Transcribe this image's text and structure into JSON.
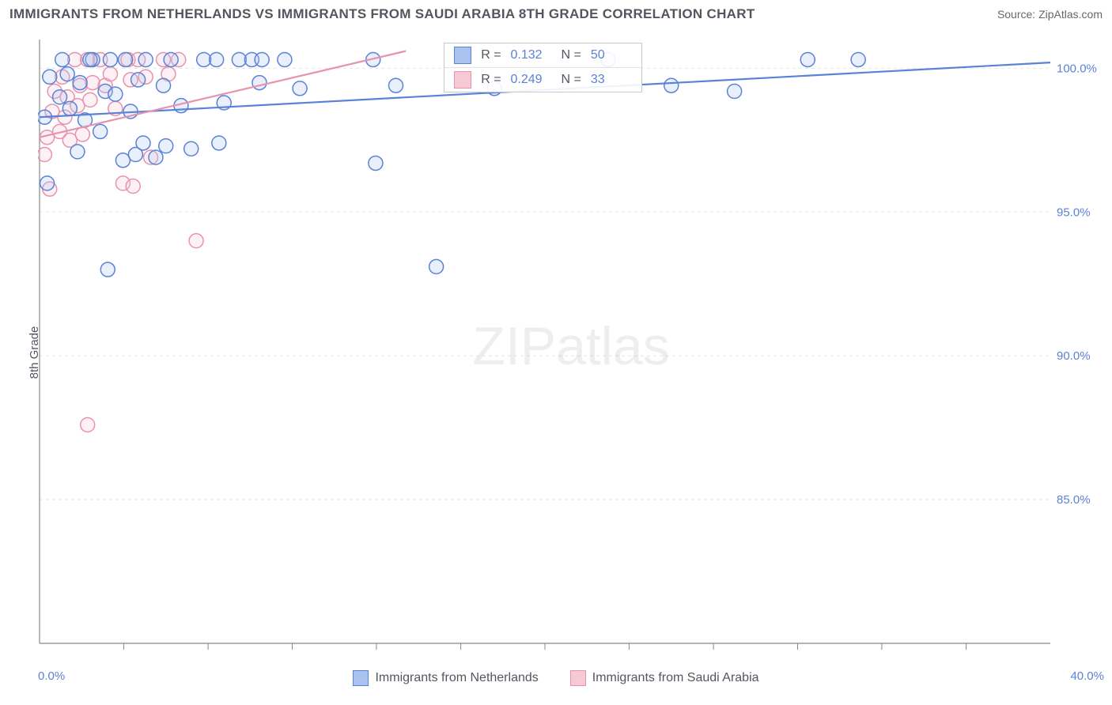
{
  "title": "IMMIGRANTS FROM NETHERLANDS VS IMMIGRANTS FROM SAUDI ARABIA 8TH GRADE CORRELATION CHART",
  "source": "Source: ZipAtlas.com",
  "watermark": {
    "bold": "ZIP",
    "light": "atlas"
  },
  "chart": {
    "type": "scatter",
    "background_color": "#ffffff",
    "grid_color": "#e5e5e5",
    "axis_color": "#888888",
    "ylabel": "8th Grade",
    "xlim": [
      0,
      40
    ],
    "ylim": [
      80,
      101
    ],
    "xticks": [
      0,
      40
    ],
    "xtick_labels": [
      "0.0%",
      "40.0%"
    ],
    "xtick_minor": [
      3.33,
      6.67,
      10,
      13.33,
      16.67,
      20,
      23.33,
      26.67,
      30,
      33.33,
      36.67
    ],
    "yticks": [
      85,
      90,
      95,
      100
    ],
    "ytick_labels": [
      "85.0%",
      "90.0%",
      "95.0%",
      "100.0%"
    ],
    "tick_label_color": "#5a82d6",
    "tick_label_fontsize": 15,
    "label_fontsize": 15,
    "label_color": "#555560",
    "marker_radius": 9,
    "marker_stroke_width": 1.5,
    "marker_fill_opacity": 0.25,
    "trend_line_width": 2.2
  },
  "series": {
    "netherlands": {
      "label": "Immigrants from Netherlands",
      "color_stroke": "#5a82d6",
      "color_fill": "#a9c3ee",
      "r_value": "0.132",
      "n_value": "50",
      "trend": {
        "x1": 0,
        "y1": 98.3,
        "x2": 40,
        "y2": 100.2
      },
      "points": [
        [
          0.4,
          99.7
        ],
        [
          0.8,
          99.0
        ],
        [
          0.9,
          100.3
        ],
        [
          1.2,
          98.6
        ],
        [
          1.5,
          97.1
        ],
        [
          1.6,
          99.5
        ],
        [
          1.8,
          98.2
        ],
        [
          2.1,
          100.3
        ],
        [
          2.4,
          97.8
        ],
        [
          2.6,
          99.2
        ],
        [
          2.7,
          93.0
        ],
        [
          2.8,
          100.3
        ],
        [
          3.0,
          99.1
        ],
        [
          3.3,
          96.8
        ],
        [
          3.4,
          100.3
        ],
        [
          3.6,
          98.5
        ],
        [
          3.8,
          97.0
        ],
        [
          3.9,
          99.6
        ],
        [
          4.1,
          97.4
        ],
        [
          4.2,
          100.3
        ],
        [
          4.6,
          96.9
        ],
        [
          4.9,
          99.4
        ],
        [
          5.0,
          97.3
        ],
        [
          5.2,
          100.3
        ],
        [
          5.6,
          98.7
        ],
        [
          6.0,
          97.2
        ],
        [
          6.5,
          100.3
        ],
        [
          7.0,
          100.3
        ],
        [
          7.1,
          97.4
        ],
        [
          7.3,
          98.8
        ],
        [
          7.9,
          100.3
        ],
        [
          8.4,
          100.3
        ],
        [
          8.7,
          99.5
        ],
        [
          8.8,
          100.3
        ],
        [
          9.7,
          100.3
        ],
        [
          10.3,
          99.3
        ],
        [
          13.2,
          100.3
        ],
        [
          13.3,
          96.7
        ],
        [
          14.1,
          99.4
        ],
        [
          15.7,
          93.1
        ],
        [
          18.0,
          99.3
        ],
        [
          22.5,
          100.3
        ],
        [
          25.0,
          99.4
        ],
        [
          27.5,
          99.2
        ],
        [
          30.4,
          100.3
        ],
        [
          32.4,
          100.3
        ],
        [
          0.3,
          96.0
        ],
        [
          0.2,
          98.3
        ],
        [
          1.1,
          99.8
        ],
        [
          2.0,
          100.3
        ]
      ]
    },
    "saudi": {
      "label": "Immigrants from Saudi Arabia",
      "color_stroke": "#e793ad",
      "color_fill": "#f7c9d7",
      "r_value": "0.249",
      "n_value": "33",
      "trend": {
        "x1": 0,
        "y1": 97.6,
        "x2": 14.5,
        "y2": 100.6
      },
      "points": [
        [
          0.3,
          97.6
        ],
        [
          0.5,
          98.5
        ],
        [
          0.6,
          99.2
        ],
        [
          0.8,
          97.8
        ],
        [
          0.9,
          99.7
        ],
        [
          1.0,
          98.3
        ],
        [
          1.1,
          99.0
        ],
        [
          1.2,
          97.5
        ],
        [
          1.4,
          100.3
        ],
        [
          1.5,
          98.7
        ],
        [
          1.6,
          99.4
        ],
        [
          1.7,
          97.7
        ],
        [
          1.9,
          87.6
        ],
        [
          1.9,
          100.3
        ],
        [
          2.0,
          98.9
        ],
        [
          2.1,
          99.5
        ],
        [
          2.4,
          100.3
        ],
        [
          2.6,
          99.4
        ],
        [
          2.8,
          99.8
        ],
        [
          3.0,
          98.6
        ],
        [
          3.3,
          96.0
        ],
        [
          3.5,
          100.3
        ],
        [
          3.6,
          99.6
        ],
        [
          3.7,
          95.9
        ],
        [
          3.9,
          100.3
        ],
        [
          4.2,
          99.7
        ],
        [
          4.4,
          96.9
        ],
        [
          4.9,
          100.3
        ],
        [
          5.1,
          99.8
        ],
        [
          5.5,
          100.3
        ],
        [
          6.2,
          94.0
        ],
        [
          0.4,
          95.8
        ],
        [
          0.2,
          97.0
        ]
      ]
    }
  },
  "r_legend": {
    "rows": [
      {
        "series": "netherlands",
        "r_label": "R =",
        "n_label": "N ="
      },
      {
        "series": "saudi",
        "r_label": "R =",
        "n_label": "N ="
      }
    ]
  }
}
